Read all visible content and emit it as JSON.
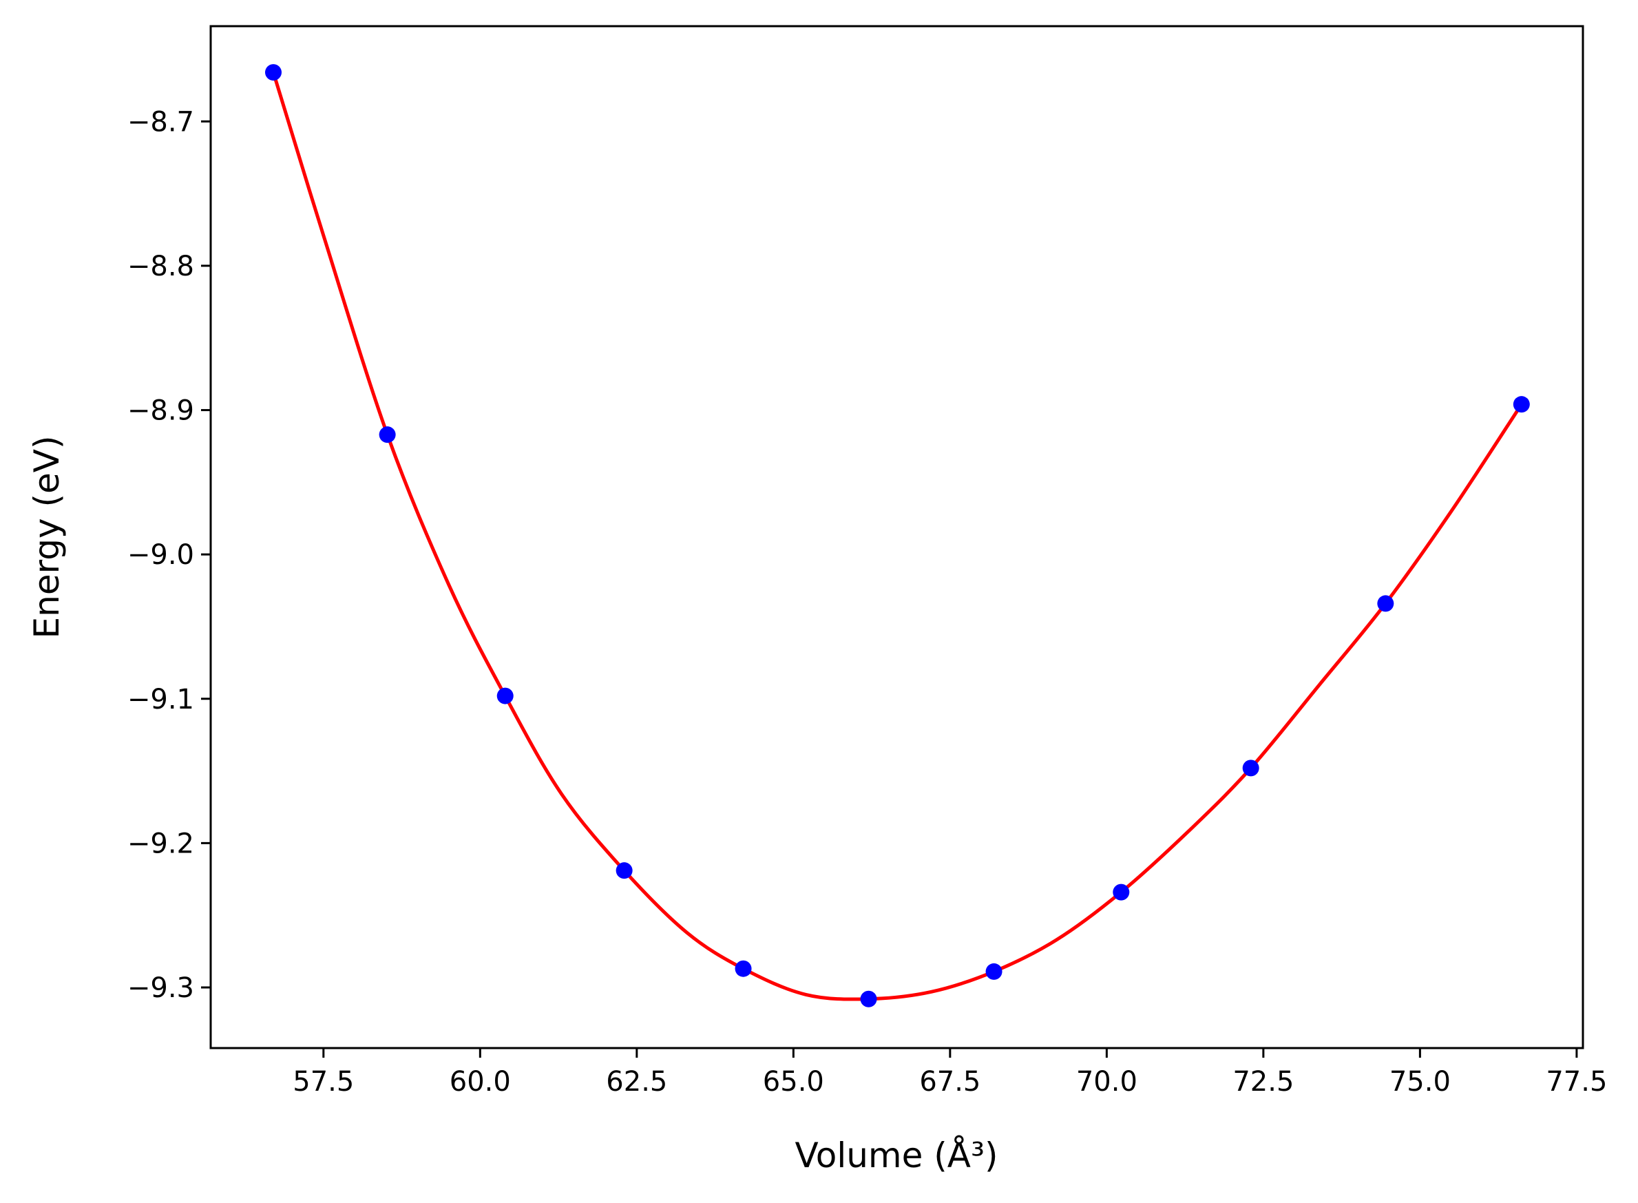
{
  "chart_data": {
    "type": "scatter",
    "title": "",
    "xlabel": "Volume (Å³)",
    "ylabel": "Energy (eV)",
    "xlim": [
      55.7,
      77.6
    ],
    "ylim": [
      -9.342,
      -8.634
    ],
    "xticks": [
      57.5,
      60.0,
      62.5,
      65.0,
      67.5,
      70.0,
      72.5,
      75.0,
      77.5
    ],
    "xtick_labels": [
      "57.5",
      "60.0",
      "62.5",
      "65.0",
      "67.5",
      "70.0",
      "72.5",
      "75.0",
      "77.5"
    ],
    "yticks": [
      -8.7,
      -8.8,
      -8.9,
      -9.0,
      -9.1,
      -9.2,
      -9.3
    ],
    "ytick_labels": [
      "−8.7",
      "−8.8",
      "−8.9",
      "−9.0",
      "−9.1",
      "−9.2",
      "−9.3"
    ],
    "grid": false,
    "series": [
      {
        "kind": "points",
        "color": "#0000ff",
        "x": [
          56.7,
          58.52,
          60.4,
          62.3,
          64.2,
          66.2,
          68.2,
          70.23,
          72.3,
          74.45,
          76.62
        ],
        "y": [
          -8.666,
          -8.917,
          -9.098,
          -9.219,
          -9.287,
          -9.308,
          -9.289,
          -9.234,
          -9.148,
          -9.034,
          -8.896
        ]
      },
      {
        "kind": "line",
        "color": "#ff0000",
        "x": [
          56.7,
          57.5,
          58.52,
          59.5,
          60.4,
          61.3,
          62.3,
          63.3,
          64.2,
          65.2,
          66.2,
          67.2,
          68.2,
          69.2,
          70.23,
          71.3,
          72.3,
          73.4,
          74.45,
          75.5,
          76.62
        ],
        "y": [
          -8.666,
          -8.779,
          -8.917,
          -9.021,
          -9.098,
          -9.166,
          -9.219,
          -9.262,
          -9.287,
          -9.305,
          -9.308,
          -9.303,
          -9.289,
          -9.267,
          -9.234,
          -9.192,
          -9.148,
          -9.09,
          -9.034,
          -8.97,
          -8.896
        ]
      }
    ]
  }
}
